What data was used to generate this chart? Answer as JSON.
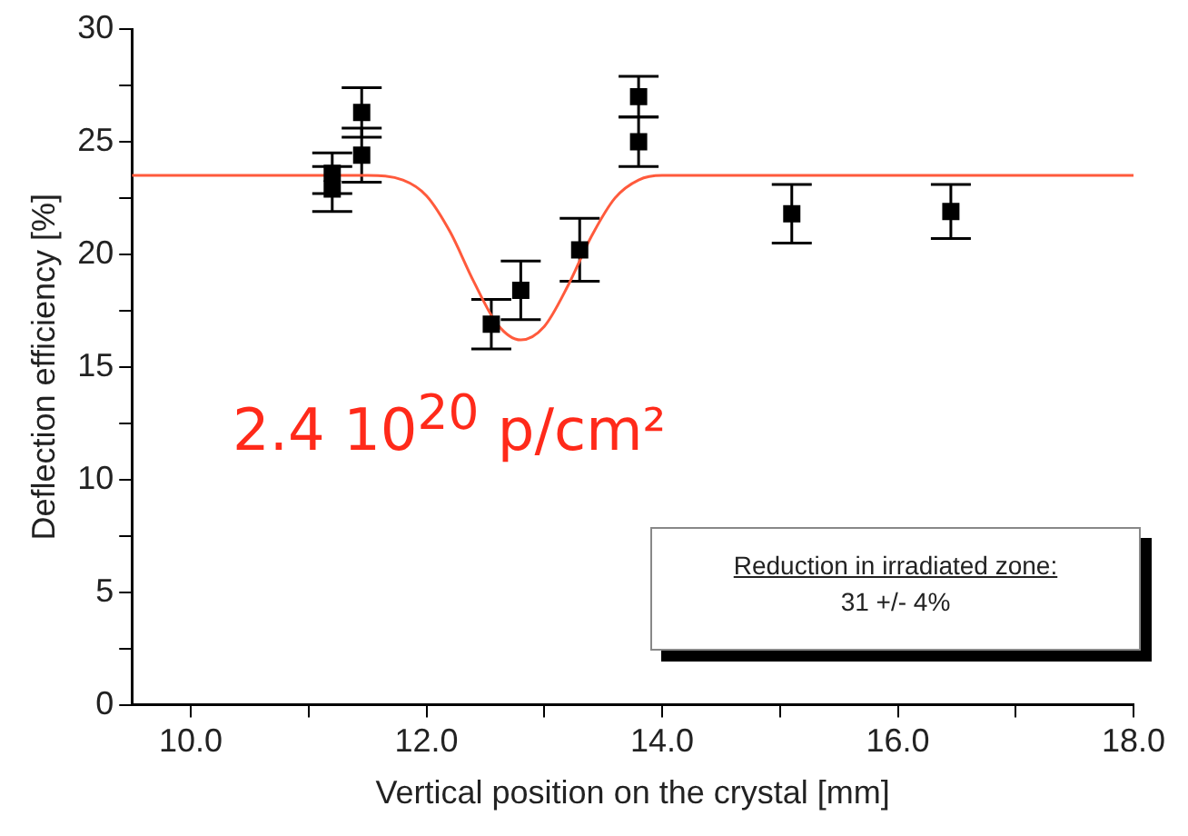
{
  "chart_data": {
    "type": "scatter",
    "xlabel": "Vertical position on the crystal [mm]",
    "ylabel": "Deflection efficiency [%]",
    "xlim": [
      9.5,
      18
    ],
    "ylim": [
      0,
      30
    ],
    "xticks": [
      {
        "value": 10,
        "label": "10.0"
      },
      {
        "value": 11,
        "label": null
      },
      {
        "value": 12,
        "label": "12.0"
      },
      {
        "value": 13,
        "label": null
      },
      {
        "value": 14,
        "label": "14.0"
      },
      {
        "value": 15,
        "label": null
      },
      {
        "value": 16,
        "label": "16.0"
      },
      {
        "value": 17,
        "label": null
      },
      {
        "value": 18,
        "label": "18.0"
      }
    ],
    "yticks": [
      0,
      {
        "value": 2.5,
        "label": null
      },
      5,
      {
        "value": 7.5,
        "label": null
      },
      10,
      {
        "value": 12.5,
        "label": null
      },
      15,
      {
        "value": 17.5,
        "label": null
      },
      20,
      {
        "value": 22.5,
        "label": null
      },
      25,
      {
        "value": 27.5,
        "label": null
      },
      30
    ],
    "grid": false,
    "legend": false,
    "series": [
      {
        "type": "scatter",
        "color": "#000000",
        "marker": "square",
        "x": [
          11.2,
          11.2,
          11.45,
          11.45,
          12.55,
          12.8,
          13.3,
          13.8,
          13.8,
          15.1,
          16.45
        ],
        "values": [
          23.6,
          22.9,
          26.3,
          24.4,
          16.9,
          18.4,
          20.2,
          27.0,
          25.0,
          21.8,
          21.9
        ],
        "errors": [
          0.9,
          1.0,
          1.1,
          1.2,
          1.1,
          1.3,
          1.4,
          0.9,
          1.1,
          1.3,
          1.2
        ]
      },
      {
        "type": "line",
        "color": "#ff5a3c",
        "marker": "none",
        "x": [
          9.5,
          11.5,
          11.8,
          12.0,
          12.2,
          12.4,
          12.6,
          12.8,
          13.0,
          13.2,
          13.4,
          13.6,
          13.8,
          14.0,
          18.0
        ],
        "values": [
          23.5,
          23.5,
          23.3,
          22.6,
          21.0,
          18.8,
          16.9,
          16.2,
          16.8,
          18.6,
          20.8,
          22.5,
          23.3,
          23.5,
          23.5
        ]
      }
    ],
    "annotations": [
      "2.4 10$^{20}$ p/cm²",
      "Reduction in irradiated zone:",
      "31 +/- 4%"
    ]
  }
}
